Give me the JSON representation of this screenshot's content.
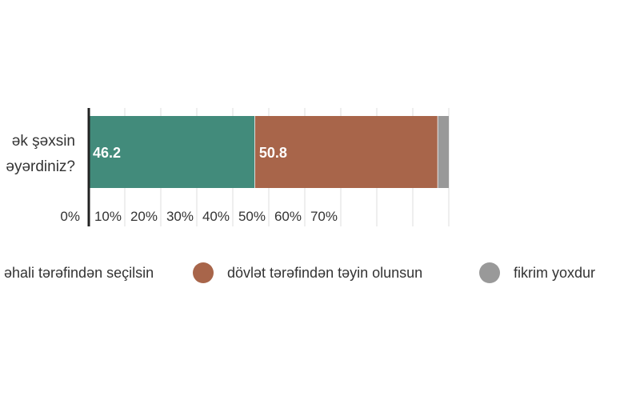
{
  "chart_data": {
    "type": "bar",
    "orientation": "horizontal",
    "stacked": true,
    "categories": [
      "ək şəxsin\nəyərdiniz?"
    ],
    "series": [
      {
        "name": "əhali tərəfindən seçilsin",
        "values": [
          46.2
        ],
        "color": "#428B7B"
      },
      {
        "name": "dövlət tərəfindən təyin olunsun",
        "values": [
          50.8
        ],
        "color": "#A8654A"
      },
      {
        "name": "fikrim yoxdur",
        "values": [
          3.0
        ],
        "color": "#999999"
      }
    ],
    "data_labels": [
      "46.2",
      "50.8"
    ],
    "xlim": [
      0,
      100
    ],
    "x_ticks": [
      "0%",
      "10%",
      "20%",
      "30%",
      "40%",
      "50%",
      "60%",
      "70%"
    ],
    "grid": true,
    "legend_position": "bottom"
  }
}
